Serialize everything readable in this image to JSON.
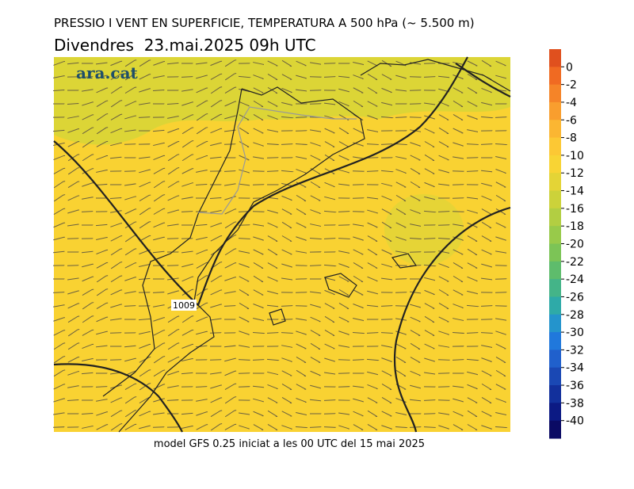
{
  "header": {
    "title": "PRESSIO I VENT EN SUPERFICIE, TEMPERATURA A 500 hPa (~ 5.500 m)",
    "subtitle": "Divendres  23.mai.2025 09h UTC"
  },
  "map": {
    "logo": "ara.cat",
    "isobar_label": "1009"
  },
  "footer": "model GFS 0.25 iniciat a les 00 UTC del 15 mai 2025",
  "colorbar": {
    "lim": [
      2,
      -42
    ],
    "ticks": [
      0,
      -2,
      -4,
      -6,
      -8,
      -10,
      -12,
      -14,
      -16,
      -18,
      -20,
      -22,
      -24,
      -26,
      -28,
      -30,
      -32,
      -34,
      -36,
      -38,
      -40
    ],
    "colors": [
      "#e0501e",
      "#f06a22",
      "#f58428",
      "#f99e2e",
      "#fbb632",
      "#fcc834",
      "#f8d434",
      "#e4d436",
      "#ccd23a",
      "#b2ce42",
      "#98ca4a",
      "#7cc456",
      "#5ebc6c",
      "#44b488",
      "#2eaaa8",
      "#2494cc",
      "#2078dc",
      "#2060cc",
      "#1a48b4",
      "#12309c",
      "#0c1a84",
      "#0a0a64"
    ]
  }
}
